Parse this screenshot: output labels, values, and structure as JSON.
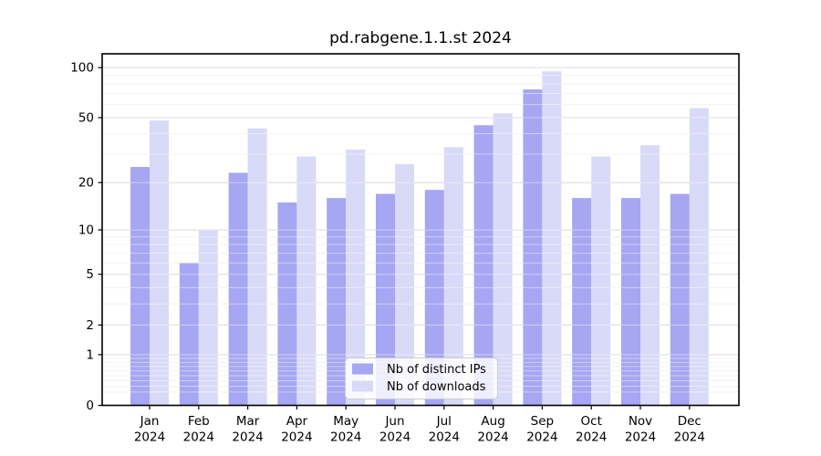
{
  "chart_data": {
    "type": "bar",
    "title": "pd.rabgene.1.1.st 2024",
    "categories": [
      "Jan",
      "Feb",
      "Mar",
      "Apr",
      "May",
      "Jun",
      "Jul",
      "Aug",
      "Sep",
      "Oct",
      "Nov",
      "Dec"
    ],
    "category_year": "2024",
    "series": [
      {
        "name": "Nb of distinct IPs",
        "color": "#a6a6f2",
        "values": [
          25,
          6,
          23,
          15,
          16,
          17,
          18,
          45,
          74,
          16,
          16,
          17
        ]
      },
      {
        "name": "Nb of downloads",
        "color": "#d9d9f8",
        "values": [
          48,
          10,
          43,
          29,
          32,
          26,
          33,
          53,
          95,
          29,
          34,
          57
        ]
      }
    ],
    "xlabel": "",
    "ylabel": "",
    "yscale": "log1p",
    "ylim": [
      0,
      121
    ],
    "y_major_ticks": [
      100,
      50,
      20,
      10,
      5,
      2,
      1,
      0
    ],
    "y_minor_gridlines": [
      0.2,
      0.3,
      0.4,
      0.5,
      0.6,
      0.7,
      0.8,
      0.9,
      3,
      4,
      6,
      7,
      8,
      9,
      30,
      40,
      60,
      70,
      80,
      90
    ],
    "grid": true,
    "legend_position": "lower center"
  },
  "colors": {
    "major_grid": "#c8c8c8",
    "minor_grid": "#ececec",
    "axis": "#000000",
    "legend_border": "#cccccc",
    "legend_background": "rgba(255,255,255,0.8)"
  }
}
